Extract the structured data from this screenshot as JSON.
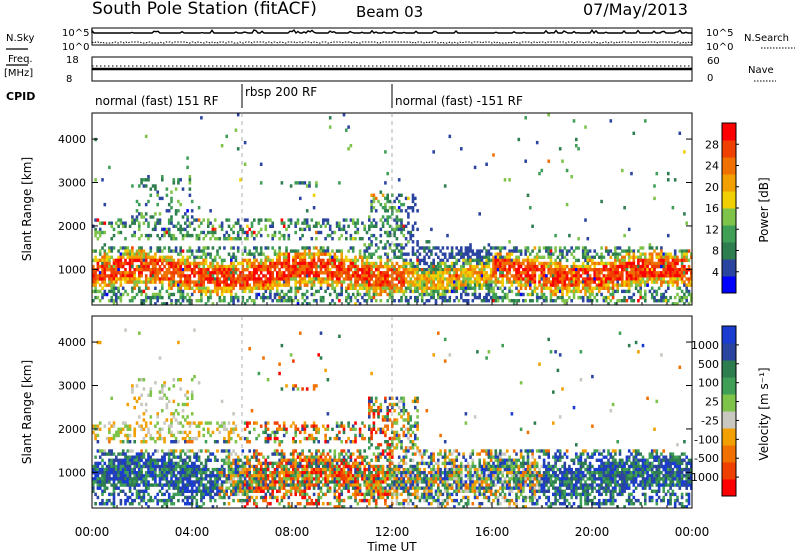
{
  "header": {
    "title": "South Pole Station (fitACF)",
    "beam": "Beam 03",
    "date": "07/May/2013"
  },
  "strip_labels": {
    "nsky": "N.Sky",
    "nsky_ticks": [
      "10^5",
      "10^0"
    ],
    "nsearch": "N.Search",
    "nsearch_ticks": [
      "10^5",
      "10^0"
    ],
    "freq_line1": "Freq.",
    "freq_line2": "[MHz]",
    "freq_ticks": [
      "18",
      "8"
    ],
    "nave": "Nave",
    "nave_ticks": [
      "60",
      "0"
    ],
    "cpid": "CPID"
  },
  "cpid_segments": [
    {
      "label": "normal (fast) 151 RF",
      "start": 0,
      "end": 6
    },
    {
      "label": "rbsp 200 RF",
      "start": 6,
      "end": 12
    },
    {
      "label": "normal (fast) -151 RF",
      "start": 12,
      "end": 24
    }
  ],
  "chart_data": [
    {
      "type": "heatmap",
      "name": "power-panel",
      "xlabel": "",
      "ylabel": "Slant Range [km]",
      "xlim": [
        0,
        24
      ],
      "ylim": [
        180,
        4600
      ],
      "yticks": [
        1000,
        2000,
        3000,
        4000
      ],
      "colorbar": {
        "label": "Power [dB]",
        "ticks": [
          "28",
          "24",
          "20",
          "16",
          "12",
          "8",
          "4"
        ],
        "colors": [
          "#0000ff",
          "#2a44a0",
          "#2e7d4e",
          "#3f9f57",
          "#7fc44a",
          "#f0d000",
          "#f2a000",
          "#f07000",
          "#f04000",
          "#ff0000"
        ]
      }
    },
    {
      "type": "heatmap",
      "name": "velocity-panel",
      "xlabel": "Time UT",
      "ylabel": "Slant Range [km]",
      "xlim": [
        0,
        24
      ],
      "ylim": [
        180,
        4600
      ],
      "yticks": [
        1000,
        2000,
        3000,
        4000
      ],
      "xtick_labels": [
        "00:00",
        "04:00",
        "08:00",
        "12:00",
        "16:00",
        "20:00",
        "00:00"
      ],
      "colorbar": {
        "label": "Velocity [m s⁻¹]",
        "ticks": [
          "1000",
          "500",
          "100",
          "25",
          "-25",
          "-100",
          "-500",
          "-1000"
        ],
        "colors": [
          "#ff0000",
          "#f04000",
          "#f07000",
          "#f2a000",
          "#c8c8c0",
          "#7fc44a",
          "#3f9f57",
          "#2e7d4e",
          "#2a44a0",
          "#1a3cd0"
        ]
      }
    }
  ]
}
